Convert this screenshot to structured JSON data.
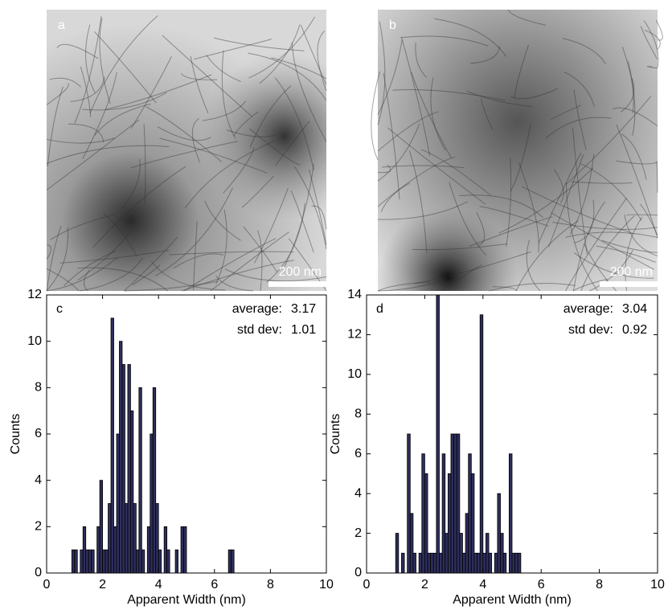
{
  "images": [
    {
      "label": "a",
      "scale_bar": "200 nm"
    },
    {
      "label": "b",
      "scale_bar": "200 nm"
    }
  ],
  "chart_data": [
    {
      "type": "histogram",
      "panel_label": "c",
      "xlabel": "Apparent Width (nm)",
      "ylabel": "Counts",
      "color": "#2e2e5c",
      "stats": [
        {
          "label": "average:",
          "value": 3.17
        },
        {
          "label": "std dev:",
          "value": 1.01
        }
      ],
      "bins": [
        0.8,
        0.9,
        1.0,
        1.1,
        1.2,
        1.3,
        1.4,
        1.5,
        1.6,
        1.7,
        1.8,
        1.9,
        2.0,
        2.1,
        2.2,
        2.3,
        2.4,
        2.5,
        2.6,
        2.7,
        2.8,
        2.9,
        3.0,
        3.1,
        3.2,
        3.3,
        3.4,
        3.5,
        3.6,
        3.7,
        3.8,
        3.9,
        4.0,
        4.1,
        4.2,
        4.3,
        4.4,
        4.5,
        4.6,
        4.7,
        4.8,
        4.9,
        5.0,
        5.1,
        5.2,
        5.3,
        5.4,
        5.5,
        5.6,
        5.7,
        5.8,
        5.9,
        6.0,
        6.1,
        6.2,
        6.3,
        6.4,
        6.5,
        6.6,
        6.7,
        6.8
      ],
      "counts": [
        0,
        1,
        1,
        0,
        1,
        2,
        1,
        1,
        1,
        0,
        2,
        4,
        1,
        1,
        3,
        11,
        2,
        6,
        10,
        9,
        3,
        9,
        7,
        3,
        1,
        8,
        1,
        0,
        2,
        6,
        8,
        3,
        1,
        0,
        2,
        1,
        0,
        0,
        1,
        0,
        2,
        2,
        0,
        0,
        0,
        0,
        0,
        0,
        0,
        0,
        0,
        0,
        0,
        0,
        0,
        0,
        0,
        1,
        1,
        0
      ],
      "xlim": [
        0,
        10
      ],
      "xticks": [
        0,
        2,
        4,
        6,
        8,
        10
      ],
      "ylim": [
        0,
        12
      ],
      "yticks": [
        0,
        2,
        4,
        6,
        8,
        10,
        12
      ]
    },
    {
      "type": "histogram",
      "panel_label": "d",
      "xlabel": "Apparent Width (nm)",
      "ylabel": "Counts",
      "color": "#2e2e5c",
      "stats": [
        {
          "label": "average:",
          "value": 3.04
        },
        {
          "label": "std dev:",
          "value": 0.92
        }
      ],
      "bins": [
        1.0,
        1.1,
        1.2,
        1.3,
        1.4,
        1.5,
        1.6,
        1.7,
        1.8,
        1.9,
        2.0,
        2.1,
        2.2,
        2.3,
        2.4,
        2.5,
        2.6,
        2.7,
        2.8,
        2.9,
        3.0,
        3.1,
        3.2,
        3.3,
        3.4,
        3.5,
        3.6,
        3.7,
        3.8,
        3.9,
        4.0,
        4.1,
        4.2,
        4.3,
        4.4,
        4.5,
        4.6,
        4.7,
        4.8,
        4.9,
        5.0,
        5.1,
        5.2,
        5.3
      ],
      "counts": [
        2,
        0,
        1,
        0,
        7,
        3,
        1,
        0,
        1,
        6,
        5,
        1,
        1,
        1,
        14,
        1,
        6,
        2,
        5,
        7,
        7,
        7,
        2,
        1,
        3,
        6,
        5,
        1,
        1,
        13,
        1,
        2,
        1,
        0,
        1,
        4,
        2,
        1,
        0,
        6,
        1,
        1,
        1
      ],
      "xlim": [
        0,
        10
      ],
      "xticks": [
        0,
        2,
        4,
        6,
        8,
        10
      ],
      "ylim": [
        0,
        14
      ],
      "yticks": [
        0,
        2,
        4,
        6,
        8,
        10,
        12,
        14
      ]
    }
  ]
}
